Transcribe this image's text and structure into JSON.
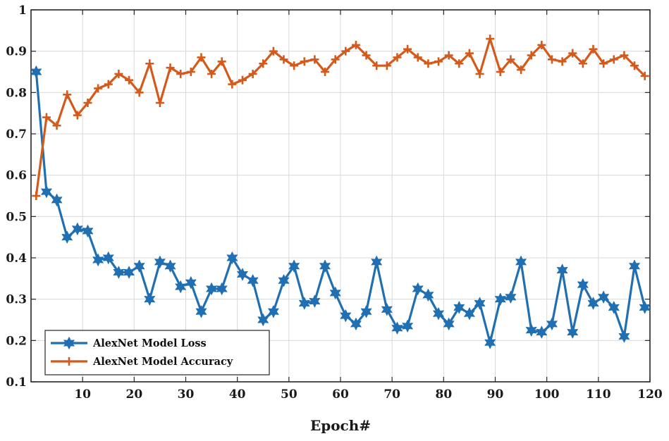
{
  "chart_data": {
    "type": "line",
    "title": "",
    "xlabel": "Epoch#",
    "ylabel": "",
    "xlim": [
      0,
      120
    ],
    "ylim": [
      0.1,
      1.0
    ],
    "grid": true,
    "legend_position": "bottom-left",
    "x_ticks": [
      10,
      20,
      30,
      40,
      50,
      60,
      70,
      80,
      90,
      100,
      110,
      120
    ],
    "x_tick_labels": [
      "10",
      "20",
      "30",
      "40",
      "50",
      "60",
      "70",
      "80",
      "90",
      "100",
      "110",
      "120"
    ],
    "y_ticks": [
      0.1,
      0.2,
      0.3,
      0.4,
      0.5,
      0.6,
      0.7,
      0.8,
      0.9,
      1.0
    ],
    "y_tick_labels": [
      "0.1",
      "0.2",
      "0.3",
      "0.4",
      "0.5",
      "0.6",
      "0.7",
      "0.8",
      "0.9",
      "1"
    ],
    "x": [
      1,
      3,
      5,
      7,
      9,
      11,
      13,
      15,
      17,
      19,
      21,
      23,
      25,
      27,
      29,
      31,
      33,
      35,
      37,
      39,
      41,
      43,
      45,
      47,
      49,
      51,
      53,
      55,
      57,
      59,
      61,
      63,
      65,
      67,
      69,
      71,
      73,
      75,
      77,
      79,
      81,
      83,
      85,
      87,
      89,
      91,
      93,
      95,
      97,
      99,
      101,
      103,
      105,
      107,
      109,
      111,
      113,
      115,
      117,
      119
    ],
    "series": [
      {
        "name": "AlexNet Model Loss",
        "color": "#1f6fb2",
        "marker": "hexagram",
        "values": [
          0.85,
          0.56,
          0.54,
          0.45,
          0.47,
          0.465,
          0.395,
          0.4,
          0.365,
          0.365,
          0.38,
          0.3,
          0.39,
          0.38,
          0.33,
          0.34,
          0.27,
          0.325,
          0.325,
          0.4,
          0.36,
          0.345,
          0.25,
          0.27,
          0.345,
          0.38,
          0.29,
          0.295,
          0.38,
          0.315,
          0.26,
          0.24,
          0.27,
          0.39,
          0.275,
          0.23,
          0.235,
          0.325,
          0.31,
          0.265,
          0.24,
          0.28,
          0.265,
          0.29,
          0.195,
          0.3,
          0.305,
          0.39,
          0.225,
          0.22,
          0.24,
          0.37,
          0.22,
          0.335,
          0.29,
          0.305,
          0.28,
          0.21,
          0.38,
          0.28
        ]
      },
      {
        "name": "AlexNet Model Accuracy",
        "color": "#d35a1a",
        "marker": "plus",
        "values": [
          0.55,
          0.74,
          0.72,
          0.795,
          0.745,
          0.775,
          0.81,
          0.82,
          0.845,
          0.83,
          0.8,
          0.87,
          0.775,
          0.86,
          0.845,
          0.85,
          0.885,
          0.845,
          0.875,
          0.82,
          0.83,
          0.845,
          0.87,
          0.9,
          0.88,
          0.865,
          0.875,
          0.88,
          0.85,
          0.88,
          0.9,
          0.915,
          0.89,
          0.865,
          0.865,
          0.885,
          0.905,
          0.885,
          0.87,
          0.875,
          0.89,
          0.87,
          0.895,
          0.845,
          0.93,
          0.85,
          0.88,
          0.855,
          0.89,
          0.915,
          0.88,
          0.875,
          0.895,
          0.87,
          0.905,
          0.87,
          0.88,
          0.89,
          0.865,
          0.84
        ]
      }
    ]
  }
}
